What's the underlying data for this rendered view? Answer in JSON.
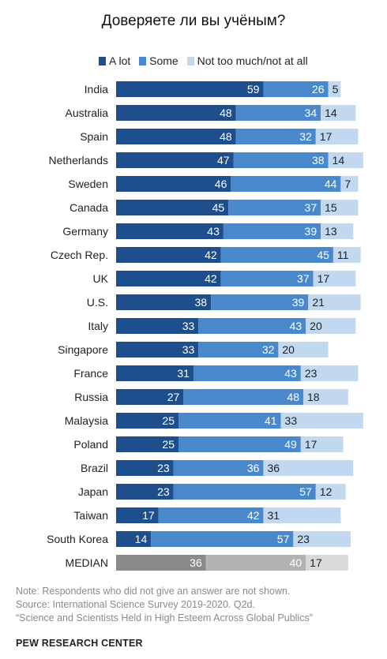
{
  "chart_data": {
    "type": "bar",
    "orientation": "horizontal",
    "stacked": true,
    "title": "Доверяете ли вы учёным?",
    "categories": [
      "India",
      "Australia",
      "Spain",
      "Netherlands",
      "Sweden",
      "Canada",
      "Germany",
      "Czech Rep.",
      "UK",
      "U.S.",
      "Italy",
      "Singapore",
      "France",
      "Russia",
      "Malaysia",
      "Poland",
      "Brazil",
      "Japan",
      "Taiwan",
      "South Korea",
      "MEDIAN"
    ],
    "series": [
      {
        "name": "A lot",
        "color": "#1f4e8c",
        "values": [
          59,
          48,
          48,
          47,
          46,
          45,
          43,
          42,
          42,
          38,
          33,
          33,
          31,
          27,
          25,
          25,
          23,
          23,
          17,
          14,
          36
        ]
      },
      {
        "name": "Some",
        "color": "#4a88cc",
        "values": [
          26,
          34,
          32,
          38,
          44,
          37,
          39,
          45,
          37,
          39,
          43,
          32,
          43,
          48,
          41,
          49,
          36,
          57,
          42,
          57,
          40
        ]
      },
      {
        "name": "Not too much/not at all",
        "color": "#c2d8ee",
        "values": [
          5,
          14,
          17,
          14,
          7,
          15,
          13,
          11,
          17,
          21,
          20,
          20,
          23,
          18,
          33,
          17,
          36,
          12,
          31,
          23,
          17
        ]
      }
    ],
    "median_colors": [
      "#8a8a8a",
      "#b2b2b2",
      "#d9d9d9"
    ],
    "xlim": [
      0,
      100
    ],
    "legend_position": "top"
  },
  "notes": [
    "Note: Respondents who did not give an answer are not shown.",
    "Source: International Science Survey 2019-2020. Q2d.",
    "“Science and Scientists Held in High Esteem Across Global Publics”"
  ],
  "source_org": "PEW RESEARCH CENTER"
}
